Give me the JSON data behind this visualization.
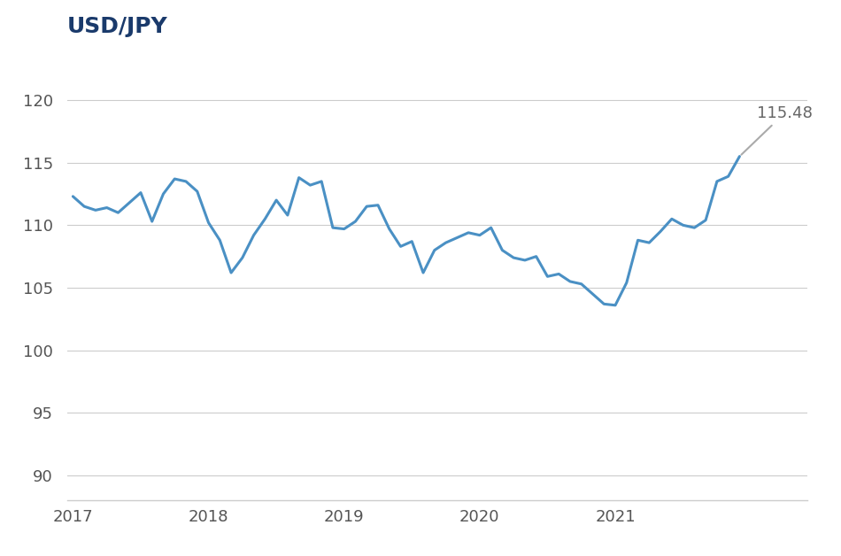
{
  "title": "USD/JPY",
  "title_color": "#1a3a6b",
  "line_color": "#4a90c4",
  "annotation_line_color": "#aaaaaa",
  "annotation_text": "115.48",
  "annotation_color": "#666666",
  "ylim": [
    88,
    124
  ],
  "yticks": [
    90,
    95,
    100,
    105,
    110,
    115,
    120
  ],
  "background_color": "#ffffff",
  "grid_color": "#cccccc",
  "series": {
    "values": [
      112.3,
      111.5,
      111.2,
      111.4,
      111.0,
      111.8,
      112.6,
      110.3,
      112.5,
      113.7,
      113.5,
      112.7,
      110.2,
      108.8,
      106.2,
      107.4,
      109.2,
      110.5,
      112.0,
      110.8,
      113.8,
      113.2,
      113.5,
      109.8,
      109.7,
      110.3,
      111.5,
      111.6,
      109.7,
      108.3,
      108.7,
      106.2,
      108.0,
      108.6,
      109.0,
      109.4,
      109.2,
      109.8,
      108.0,
      107.4,
      107.2,
      107.5,
      105.9,
      106.1,
      105.5,
      105.3,
      104.5,
      103.7,
      103.6,
      105.4,
      108.8,
      108.6,
      109.5,
      110.5,
      110.0,
      109.8,
      110.4,
      113.5,
      113.9,
      115.5
    ]
  },
  "xtick_positions": [
    0,
    12,
    24,
    36,
    48,
    60
  ],
  "xtick_labels": [
    "2017",
    "2018",
    "2019",
    "2020",
    "2021",
    ""
  ],
  "line_width": 2.2,
  "title_fontsize": 18,
  "tick_fontsize": 13,
  "figsize": [
    9.5,
    6.28
  ],
  "dpi": 100
}
